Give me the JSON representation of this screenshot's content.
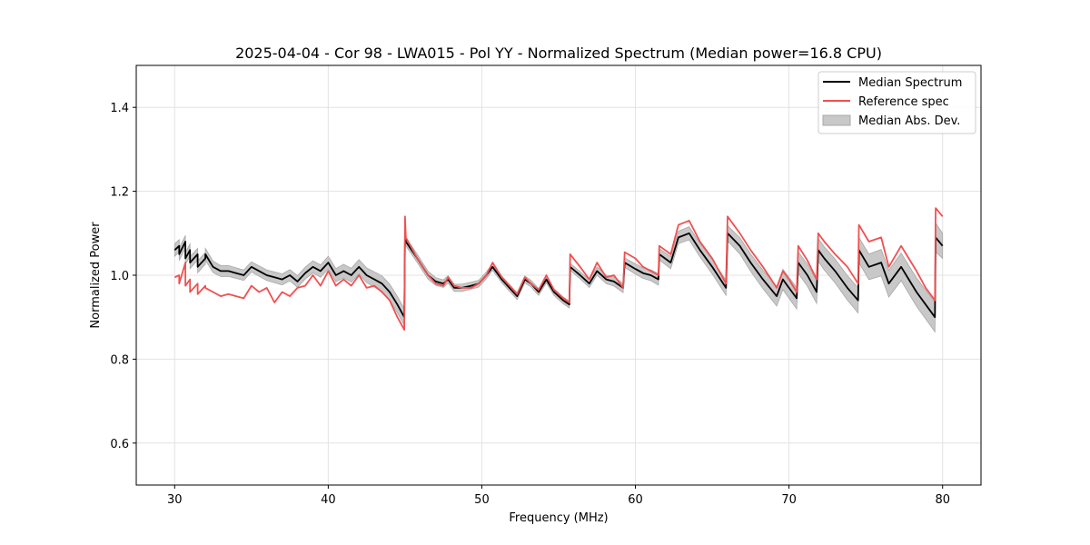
{
  "chart_data": {
    "type": "line",
    "title": "2025-04-04 - Cor 98 - LWA015 - Pol YY - Normalized Spectrum (Median power=16.8 CPU)",
    "xlabel": "Frequency (MHz)",
    "ylabel": "Normalized Power",
    "xlim": [
      27.5,
      82.5
    ],
    "ylim": [
      0.5,
      1.5
    ],
    "xticks": [
      30,
      40,
      50,
      60,
      70,
      80
    ],
    "yticks": [
      0.6,
      0.8,
      1.0,
      1.2,
      1.4
    ],
    "xtick_labels": [
      "30",
      "40",
      "50",
      "60",
      "70",
      "80"
    ],
    "ytick_labels": [
      "0.6",
      "0.8",
      "1.0",
      "1.2",
      "1.4"
    ],
    "grid": true,
    "legend_position": "top-right",
    "colors": {
      "median": "#000000",
      "reference": "#f05050",
      "mad_fill": "#c8c8c8",
      "mad_edge": "#a8a8a8"
    },
    "series": [
      {
        "name": "Median Spectrum",
        "x": [
          30.0,
          30.3,
          30.3,
          30.7,
          30.7,
          31.0,
          31.0,
          31.5,
          31.5,
          32.0,
          32.0,
          32.5,
          33.0,
          33.5,
          34.0,
          34.5,
          35.0,
          35.5,
          36.0,
          36.5,
          37.0,
          37.5,
          38.0,
          38.5,
          39.0,
          39.5,
          40.0,
          40.5,
          41.0,
          41.5,
          42.0,
          42.5,
          43.0,
          43.5,
          44.0,
          44.5,
          44.95,
          45.0,
          45.05,
          45.8,
          46.5,
          47.0,
          47.5,
          47.8,
          48.2,
          48.7,
          49.3,
          49.8,
          50.3,
          50.7,
          51.3,
          51.8,
          52.3,
          52.8,
          53.2,
          53.7,
          54.2,
          54.7,
          55.3,
          55.7,
          55.75,
          56.4,
          57.0,
          57.5,
          58.1,
          58.6,
          59.2,
          59.3,
          60.0,
          60.5,
          61.0,
          61.5,
          61.55,
          62.3,
          62.8,
          63.5,
          64.2,
          65.0,
          65.9,
          66.0,
          66.8,
          67.5,
          68.3,
          69.2,
          69.6,
          70.0,
          70.5,
          70.6,
          71.2,
          71.8,
          71.9,
          72.3,
          73.0,
          73.8,
          74.5,
          74.55,
          75.2,
          76.0,
          76.5,
          77.3,
          77.8,
          78.3,
          78.9,
          79.5,
          79.55,
          80.0
        ],
        "values": [
          1.06,
          1.07,
          1.05,
          1.08,
          1.04,
          1.06,
          1.03,
          1.05,
          1.02,
          1.04,
          1.05,
          1.02,
          1.01,
          1.01,
          1.005,
          1.0,
          1.02,
          1.01,
          1.0,
          0.995,
          0.99,
          1.0,
          0.985,
          1.005,
          1.02,
          1.01,
          1.03,
          1.0,
          1.01,
          1.0,
          1.02,
          1.0,
          0.99,
          0.98,
          0.96,
          0.93,
          0.9,
          1.1,
          1.08,
          1.04,
          1.0,
          0.985,
          0.98,
          0.99,
          0.97,
          0.97,
          0.975,
          0.98,
          1.0,
          1.02,
          0.99,
          0.97,
          0.95,
          0.99,
          0.98,
          0.96,
          0.99,
          0.96,
          0.94,
          0.93,
          1.02,
          1.0,
          0.98,
          1.01,
          0.99,
          0.985,
          0.97,
          1.03,
          1.015,
          1.005,
          1.0,
          0.99,
          1.05,
          1.03,
          1.09,
          1.1,
          1.06,
          1.02,
          0.97,
          1.1,
          1.07,
          1.03,
          0.99,
          0.95,
          0.99,
          0.97,
          0.945,
          1.03,
          1.0,
          0.96,
          1.06,
          1.04,
          1.01,
          0.97,
          0.94,
          1.06,
          1.02,
          1.03,
          0.98,
          1.02,
          0.99,
          0.96,
          0.93,
          0.9,
          1.09,
          1.07
        ],
        "color": "#000000"
      },
      {
        "name": "Reference spec",
        "x": [
          30.0,
          30.3,
          30.3,
          30.7,
          30.7,
          31.0,
          31.0,
          31.5,
          31.5,
          32.0,
          32.0,
          32.5,
          33.0,
          33.5,
          34.0,
          34.5,
          35.0,
          35.5,
          36.0,
          36.5,
          37.0,
          37.5,
          38.0,
          38.5,
          39.0,
          39.5,
          40.0,
          40.5,
          41.0,
          41.5,
          42.0,
          42.5,
          43.0,
          43.5,
          44.0,
          44.5,
          44.95,
          45.0,
          45.05,
          45.8,
          46.5,
          47.0,
          47.5,
          47.8,
          48.2,
          48.7,
          49.3,
          49.8,
          50.3,
          50.7,
          51.3,
          51.8,
          52.3,
          52.8,
          53.2,
          53.7,
          54.2,
          54.7,
          55.3,
          55.7,
          55.75,
          56.4,
          57.0,
          57.5,
          58.1,
          58.6,
          59.2,
          59.3,
          60.0,
          60.5,
          61.0,
          61.5,
          61.55,
          62.3,
          62.8,
          63.5,
          64.2,
          65.0,
          65.9,
          66.0,
          66.8,
          67.5,
          68.3,
          69.2,
          69.6,
          70.0,
          70.5,
          70.6,
          71.2,
          71.8,
          71.9,
          72.3,
          73.0,
          73.8,
          74.5,
          74.55,
          75.2,
          76.0,
          76.5,
          77.3,
          77.8,
          78.3,
          78.9,
          79.5,
          79.55,
          80.0
        ],
        "values": [
          0.995,
          1.0,
          0.98,
          1.03,
          0.975,
          0.99,
          0.96,
          0.98,
          0.955,
          0.975,
          0.97,
          0.96,
          0.95,
          0.955,
          0.95,
          0.945,
          0.975,
          0.96,
          0.97,
          0.935,
          0.96,
          0.95,
          0.97,
          0.975,
          1.0,
          0.975,
          1.01,
          0.975,
          0.99,
          0.975,
          1.0,
          0.97,
          0.975,
          0.96,
          0.94,
          0.9,
          0.87,
          1.14,
          1.09,
          1.04,
          1.0,
          0.98,
          0.975,
          0.995,
          0.975,
          0.97,
          0.97,
          0.98,
          1.0,
          1.03,
          0.995,
          0.975,
          0.955,
          0.995,
          0.98,
          0.965,
          1.0,
          0.965,
          0.945,
          0.935,
          1.05,
          1.02,
          0.99,
          1.03,
          0.995,
          1.0,
          0.97,
          1.055,
          1.04,
          1.02,
          1.01,
          1.0,
          1.07,
          1.05,
          1.12,
          1.13,
          1.08,
          1.04,
          0.98,
          1.14,
          1.1,
          1.06,
          1.02,
          0.97,
          1.01,
          0.99,
          0.96,
          1.07,
          1.035,
          0.99,
          1.1,
          1.08,
          1.05,
          1.02,
          0.98,
          1.12,
          1.08,
          1.09,
          1.02,
          1.07,
          1.04,
          1.01,
          0.97,
          0.94,
          1.16,
          1.14
        ],
        "color": "#f05050"
      },
      {
        "name": "Median Abs. Dev.",
        "kind": "band",
        "x": [
          30.0,
          35.0,
          40.0,
          44.95,
          45.05,
          50.0,
          55.7,
          60.0,
          65.9,
          70.0,
          74.5,
          79.5,
          80.0
        ],
        "half_width": [
          0.015,
          0.012,
          0.015,
          0.02,
          0.01,
          0.008,
          0.008,
          0.012,
          0.018,
          0.025,
          0.03,
          0.035,
          0.03
        ],
        "color": "#c8c8c8"
      }
    ]
  }
}
